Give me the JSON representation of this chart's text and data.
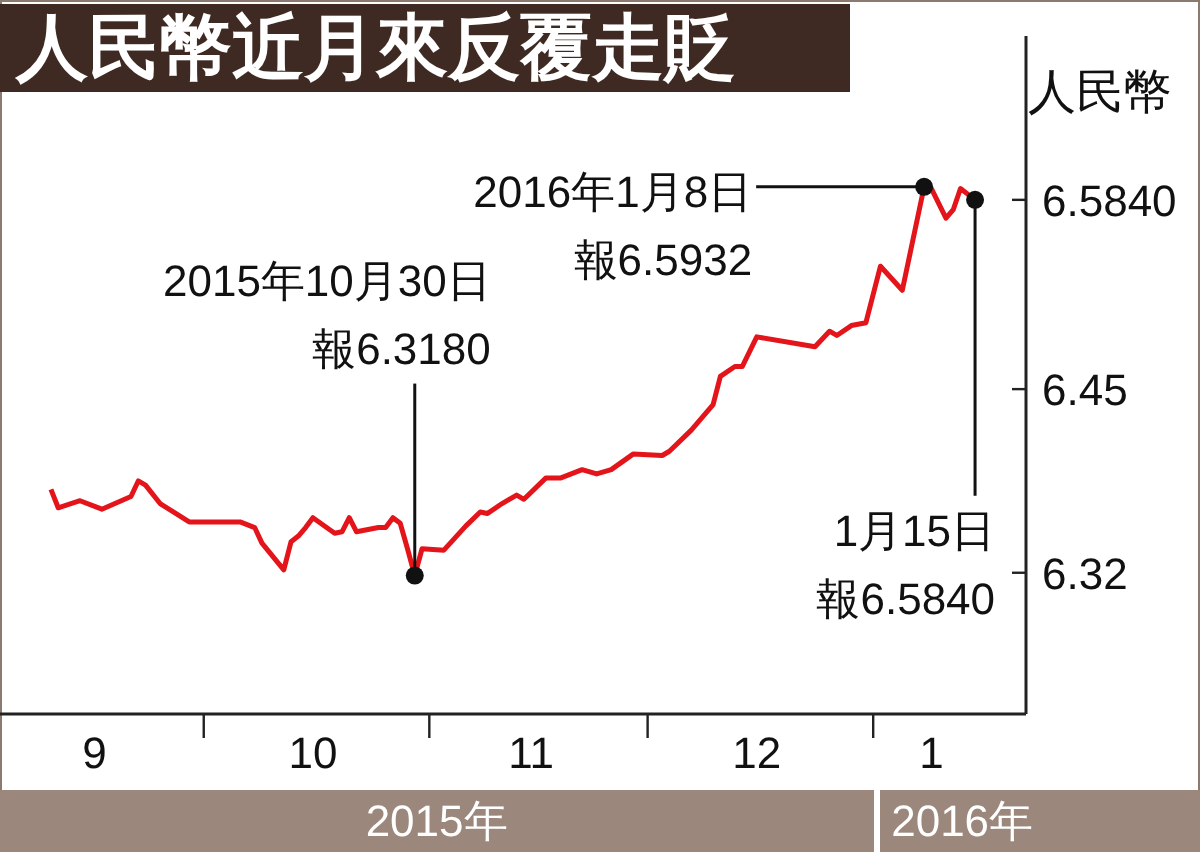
{
  "chart_data": {
    "type": "line",
    "title": "人民幣近月來反覆走貶",
    "ylabel": "人民幣",
    "x": [
      "2015-09-10",
      "2015-09-11",
      "2015-09-14",
      "2015-09-17",
      "2015-09-21",
      "2015-09-22",
      "2015-09-23",
      "2015-09-25",
      "2015-09-29",
      "2015-10-06",
      "2015-10-08",
      "2015-10-09",
      "2015-10-12",
      "2015-10-13",
      "2015-10-14",
      "2015-10-15",
      "2015-10-16",
      "2015-10-19",
      "2015-10-20",
      "2015-10-21",
      "2015-10-22",
      "2015-10-25",
      "2015-10-26",
      "2015-10-27",
      "2015-10-28",
      "2015-10-29",
      "2015-10-30",
      "2015-10-31",
      "2015-11-03",
      "2015-11-06",
      "2015-11-08",
      "2015-11-09",
      "2015-11-11",
      "2015-11-13",
      "2015-11-14",
      "2015-11-17",
      "2015-11-19",
      "2015-11-22",
      "2015-11-24",
      "2015-11-26",
      "2015-11-29",
      "2015-12-03",
      "2015-12-04",
      "2015-12-07",
      "2015-12-10",
      "2015-12-11",
      "2015-12-13",
      "2015-12-14",
      "2015-12-16",
      "2015-12-24",
      "2015-12-26",
      "2015-12-27",
      "2015-12-29",
      "2015-12-31",
      "2016-01-02",
      "2016-01-05",
      "2016-01-08",
      "2016-01-09",
      "2016-01-11",
      "2016-01-12",
      "2016-01-13",
      "2016-01-15"
    ],
    "series": [
      {
        "color": "#e3151b",
        "values": [
          6.379,
          6.366,
          6.371,
          6.365,
          6.374,
          6.385,
          6.382,
          6.369,
          6.356,
          6.356,
          6.352,
          6.341,
          6.322,
          6.342,
          6.346,
          6.352,
          6.359,
          6.348,
          6.349,
          6.359,
          6.349,
          6.352,
          6.352,
          6.359,
          6.355,
          6.337,
          6.318,
          6.337,
          6.336,
          6.353,
          6.363,
          6.362,
          6.369,
          6.375,
          6.372,
          6.387,
          6.387,
          6.393,
          6.39,
          6.393,
          6.404,
          6.403,
          6.406,
          6.421,
          6.439,
          6.459,
          6.466,
          6.466,
          6.487,
          6.48,
          6.491,
          6.488,
          6.495,
          6.497,
          6.537,
          6.52,
          6.5932,
          6.592,
          6.571,
          6.577,
          6.592,
          6.584
        ]
      }
    ],
    "xlim": [
      "2015-09-03",
      "2016-01-22"
    ],
    "xticks": [
      {
        "value": "2015-09-16",
        "label": "9"
      },
      {
        "value": "2015-10-01",
        "label": null
      },
      {
        "value": "2015-10-16",
        "label": "10"
      },
      {
        "value": "2015-11-01",
        "label": null
      },
      {
        "value": "2015-11-15",
        "label": "11"
      },
      {
        "value": "2015-12-01",
        "label": null
      },
      {
        "value": "2015-12-16",
        "label": "12"
      },
      {
        "value": "2016-01-01",
        "label": null
      },
      {
        "value": "2016-01-09",
        "label": "1"
      }
    ],
    "ylim": [
      6.22,
      6.7
    ],
    "yticks": [
      6.32,
      6.45,
      {
        "value": 6.584,
        "label": "6.5840"
      }
    ],
    "grid": false,
    "legend": false,
    "marker": "none",
    "line_style": "solid",
    "annotations": [
      {
        "text": "2015年10月30日報6.3180",
        "x": "2015-10-30",
        "y": 6.318
      },
      {
        "text": "2016年1月8日報6.5932",
        "x": "2016-01-08",
        "y": 6.5932
      },
      {
        "text": "1月15日報6.5840",
        "x": "2016-01-15",
        "y": 6.584
      },
      "2015年",
      "2016年"
    ]
  }
}
